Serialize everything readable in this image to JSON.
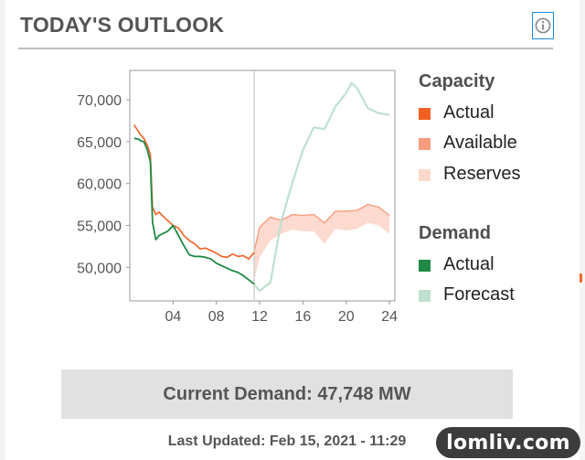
{
  "header": {
    "title": "TODAY'S OUTLOOK",
    "info_icon": "info-circle-icon"
  },
  "legend": {
    "capacity_heading": "Capacity",
    "capacity_items": [
      {
        "label": "Actual",
        "color": "#f26122"
      },
      {
        "label": "Available",
        "color": "#f79c7e"
      },
      {
        "label": "Reserves",
        "color": "#fcd8cc"
      }
    ],
    "demand_heading": "Demand",
    "demand_items": [
      {
        "label": "Actual",
        "color": "#1e8a45"
      },
      {
        "label": "Forecast",
        "color": "#bfe0cf"
      }
    ]
  },
  "current_demand": {
    "text": "Current Demand: 47,748 MW"
  },
  "last_updated": {
    "text": "Last Updated: Feb 15, 2021 - 11:29"
  },
  "watermark": {
    "text": "lomliv.com"
  },
  "chart_data": {
    "type": "line",
    "xlim": [
      0,
      24.5
    ],
    "ylim": [
      46000,
      73500
    ],
    "x_ticks": [
      4,
      8,
      12,
      16,
      20,
      24
    ],
    "x_tick_labels": [
      "04",
      "08",
      "12",
      "16",
      "20",
      "24"
    ],
    "y_ticks": [
      50000,
      55000,
      60000,
      65000,
      70000
    ],
    "y_tick_labels": [
      "50,000",
      "55,000",
      "60,000",
      "65,000",
      "70,000"
    ],
    "now_marker_x": 11.5,
    "grid": false,
    "series": [
      {
        "name": "Capacity Actual",
        "color": "#f26122",
        "x": [
          0.4,
          0.8,
          1.0,
          1.3,
          1.6,
          1.9,
          2.1,
          2.4,
          2.7,
          3.0,
          3.5,
          4.0,
          4.5,
          5.0,
          5.5,
          6.0,
          6.5,
          7.0,
          7.5,
          8.0,
          8.5,
          9.0,
          9.5,
          10.0,
          10.5,
          11.0,
          11.5
        ],
        "y": [
          67000,
          66200,
          65800,
          65400,
          64600,
          63500,
          57200,
          56300,
          56600,
          56200,
          55600,
          55000,
          54700,
          53800,
          53200,
          52800,
          52200,
          52300,
          52000,
          51700,
          51300,
          51200,
          51600,
          51300,
          51400,
          51000,
          51800
        ]
      },
      {
        "name": "Demand Actual",
        "color": "#1e8a45",
        "x": [
          0.4,
          0.8,
          1.0,
          1.3,
          1.6,
          1.9,
          2.1,
          2.4,
          2.7,
          3.0,
          3.5,
          4.0,
          4.5,
          5.0,
          5.5,
          6.0,
          6.5,
          7.0,
          7.5,
          8.0,
          8.5,
          9.0,
          9.5,
          10.0,
          10.5,
          11.0,
          11.5
        ],
        "y": [
          65400,
          65300,
          65100,
          65000,
          64100,
          62600,
          55400,
          53300,
          53800,
          54000,
          54300,
          55000,
          53800,
          52600,
          51500,
          51300,
          51300,
          51200,
          51000,
          50500,
          50200,
          49900,
          49600,
          49400,
          49000,
          48500,
          48000
        ]
      },
      {
        "name": "Demand Forecast",
        "color": "#bfe0cf",
        "x": [
          11.5,
          12.0,
          13.0,
          14.0,
          15.0,
          16.0,
          17.0,
          18.0,
          19.0,
          20.0,
          20.5,
          21.0,
          22.0,
          23.0,
          24.0
        ],
        "y": [
          48000,
          47200,
          48200,
          55500,
          60000,
          64000,
          66700,
          66500,
          69200,
          70800,
          72000,
          71400,
          69000,
          68400,
          68200
        ]
      },
      {
        "name": "Capacity Available (upper)",
        "color": "#f79c7e",
        "x": [
          11.5,
          12.0,
          13.0,
          14.0,
          15.0,
          16.0,
          17.0,
          18.0,
          19.0,
          20.0,
          21.0,
          22.0,
          23.0,
          24.0
        ],
        "y": [
          51900,
          54800,
          56000,
          55600,
          56300,
          56200,
          56300,
          55300,
          56700,
          56700,
          56800,
          57500,
          57200,
          56200
        ]
      },
      {
        "name": "Capacity Reserves (lower)",
        "color": "#fcd8cc",
        "x": [
          11.5,
          12.0,
          13.0,
          14.0,
          15.0,
          16.0,
          17.0,
          18.0,
          19.0,
          20.0,
          21.0,
          22.0,
          23.0,
          24.0
        ],
        "y": [
          48500,
          51200,
          53200,
          54000,
          54500,
          54300,
          54300,
          52800,
          54600,
          54400,
          54600,
          55300,
          55000,
          54000
        ]
      }
    ]
  }
}
